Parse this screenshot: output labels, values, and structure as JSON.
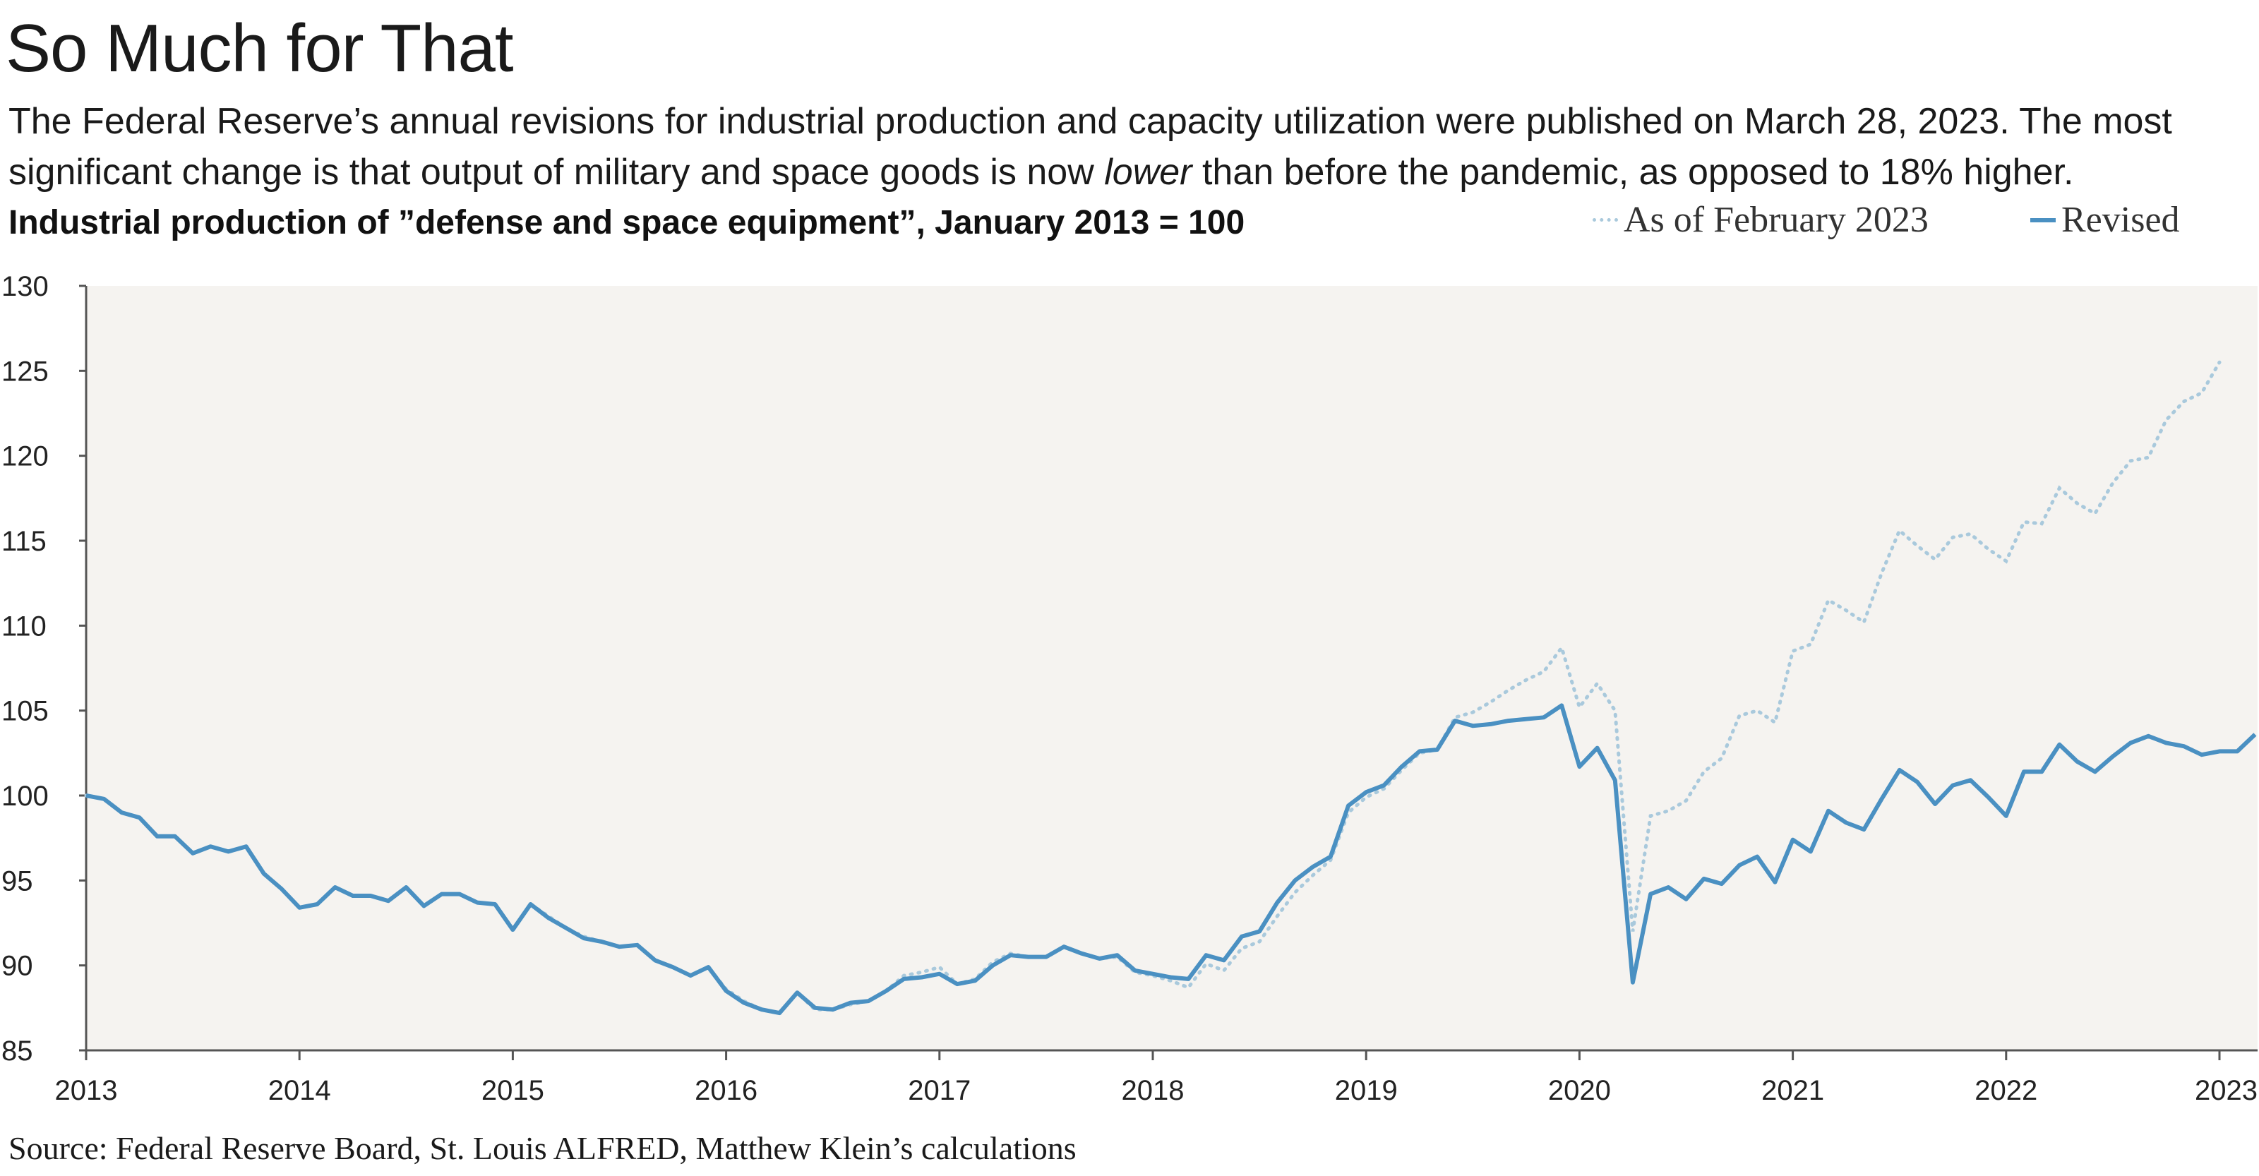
{
  "header": {
    "title": "So Much for That",
    "subtitle_a": "The Federal Reserve’s annual revisions for industrial production and capacity utilization were published on March 28, 2023. The most significant change is that output of military and space goods is now ",
    "subtitle_em": "lower",
    "subtitle_b": " than before the pandemic, as opposed to 18% higher.",
    "chart_title": "Industrial production of ”defense and space equipment”, January 2013 = 100"
  },
  "legend": {
    "prior_label": "As of February 2023",
    "revised_label": "Revised"
  },
  "source": "Source: Federal Reserve Board, St. Louis ALFRED, Matthew Klein’s calculations",
  "colors": {
    "revised": "#4a90c2",
    "prior": "#a9c9dc",
    "plot_bg": "#f5f3f0"
  },
  "chart_data": {
    "type": "line",
    "ylim": [
      85,
      130
    ],
    "y_ticks": [
      "85",
      "90",
      "95",
      "100",
      "105",
      "110",
      "115",
      "120",
      "125",
      "130"
    ],
    "x_ticks": [
      "2013",
      "2014",
      "2015",
      "2016",
      "2017",
      "2018",
      "2019",
      "2020",
      "2021",
      "2022",
      "2023"
    ],
    "x_start": "2013-01",
    "series": [
      {
        "name": "As of February 2023",
        "style": "dotted",
        "values": [
          100,
          99.8,
          99,
          98.7,
          97.6,
          97.6,
          96.6,
          97,
          96.7,
          97,
          95.4,
          94.5,
          93.4,
          93.6,
          94.6,
          94.1,
          94.1,
          93.8,
          94.6,
          93.5,
          94.2,
          94.2,
          93.7,
          93.6,
          92.1,
          93.6,
          92.9,
          92.2,
          91.7,
          91.4,
          91.1,
          91.2,
          90.3,
          89.9,
          89.4,
          89.9,
          88.6,
          87.9,
          87.4,
          87.2,
          88.4,
          87.4,
          87.4,
          87.7,
          87.9,
          88.5,
          89.4,
          89.6,
          89.9,
          88.9,
          89.2,
          90.2,
          90.7,
          90.5,
          90.5,
          91.1,
          90.7,
          90.4,
          90.5,
          89.6,
          89.4,
          89.1,
          88.7,
          90.1,
          89.7,
          91.0,
          91.4,
          92.9,
          94.3,
          95.3,
          96.2,
          99.0,
          99.9,
          100.4,
          101.5,
          102.5,
          102.7,
          104.6,
          104.9,
          105.5,
          106.2,
          106.8,
          107.3,
          108.7,
          105.2,
          106.6,
          105.0,
          92.0,
          98.8,
          99.1,
          99.7,
          101.4,
          102.2,
          104.7,
          105.0,
          104.3,
          108.5,
          108.9,
          111.5,
          110.9,
          110.2,
          113.1,
          115.6,
          114.7,
          113.9,
          115.2,
          115.4,
          114.5,
          113.8,
          116.1,
          116.0,
          118.1,
          117.2,
          116.6,
          118.4,
          119.7,
          119.9,
          122.1,
          123.2,
          123.7,
          125.5
        ]
      },
      {
        "name": "Revised",
        "style": "solid",
        "values": [
          100,
          99.8,
          99,
          98.7,
          97.6,
          97.6,
          96.6,
          97,
          96.7,
          97,
          95.4,
          94.5,
          93.4,
          93.6,
          94.6,
          94.1,
          94.1,
          93.8,
          94.6,
          93.5,
          94.2,
          94.2,
          93.7,
          93.6,
          92.1,
          93.6,
          92.8,
          92.2,
          91.6,
          91.4,
          91.1,
          91.2,
          90.3,
          89.9,
          89.4,
          89.9,
          88.5,
          87.8,
          87.4,
          87.2,
          88.4,
          87.5,
          87.4,
          87.8,
          87.9,
          88.5,
          89.2,
          89.3,
          89.5,
          88.9,
          89.1,
          90.0,
          90.6,
          90.5,
          90.5,
          91.1,
          90.7,
          90.4,
          90.6,
          89.7,
          89.5,
          89.3,
          89.2,
          90.6,
          90.3,
          91.7,
          92.0,
          93.7,
          95.0,
          95.8,
          96.4,
          99.4,
          100.2,
          100.6,
          101.7,
          102.6,
          102.7,
          104.4,
          104.1,
          104.2,
          104.4,
          104.5,
          104.6,
          105.3,
          101.7,
          102.8,
          100.9,
          89.0,
          94.2,
          94.6,
          93.9,
          95.1,
          94.8,
          95.9,
          96.4,
          94.9,
          97.4,
          96.7,
          99.1,
          98.4,
          98.0,
          99.8,
          101.5,
          100.8,
          99.5,
          100.6,
          100.9,
          99.9,
          98.8,
          101.4,
          101.4,
          103.0,
          102.0,
          101.4,
          102.3,
          103.1,
          103.5,
          103.1,
          102.9,
          102.4,
          102.6,
          102.6,
          103.6
        ]
      }
    ]
  }
}
